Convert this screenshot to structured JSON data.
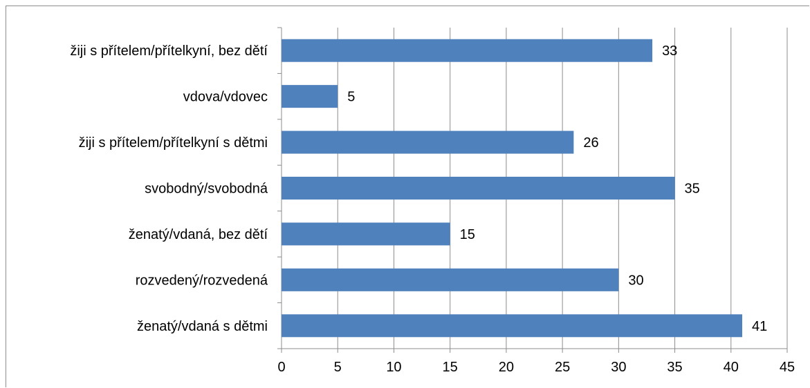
{
  "chart_data": {
    "type": "bar",
    "orientation": "horizontal",
    "categories": [
      "žiji s přítelem/přítelkyní, bez dětí",
      "vdova/vdovec",
      "žiji s přítelem/přítelkyní s dětmi",
      "svobodný/svobodná",
      "ženatý/vdaná, bez dětí",
      "rozvedený/rozvedená",
      "ženatý/vdaná s dětmi"
    ],
    "values": [
      33,
      5,
      26,
      35,
      15,
      30,
      41
    ],
    "xlim": [
      0,
      45
    ],
    "x_ticks": [
      "0",
      "5",
      "10",
      "15",
      "20",
      "25",
      "30",
      "35",
      "40",
      "45"
    ],
    "grid": "vertical",
    "legend": "none",
    "data_labels": true,
    "colors": {
      "bar": "#4f81bd",
      "grid": "#8c8c8c",
      "axis": "#8c8c8c"
    }
  }
}
